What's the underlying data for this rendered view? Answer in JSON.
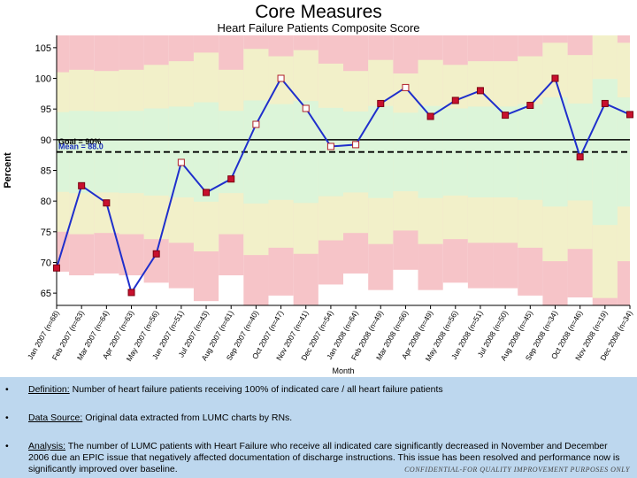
{
  "slide": {
    "title": "Core Measures"
  },
  "chart_data": {
    "type": "line",
    "title": "Heart Failure Patients Composite Score",
    "xlabel": "Month",
    "ylabel": "Percent",
    "ylim": [
      63,
      107
    ],
    "yticks": [
      65,
      70,
      75,
      80,
      85,
      90,
      95,
      100,
      105
    ],
    "categories": [
      "Jan 2007 (n=68)",
      "Feb 2007 (n=63)",
      "Mar 2007 (n=64)",
      "Apr 2007 (n=63)",
      "May 2007 (n=56)",
      "Jun 2007 (n=51)",
      "Jul 2007 (n=43)",
      "Aug 2007 (n=61)",
      "Sep 2007 (n=40)",
      "Oct 2007 (n=47)",
      "Nov 2007 (n=41)",
      "Dec 2007 (n=54)",
      "Jan 2008 (n=64)",
      "Feb 2008 (n=49)",
      "Mar 2008 (n=66)",
      "Apr 2008 (n=49)",
      "May 2008 (n=56)",
      "Jun 2008 (n=51)",
      "Jul 2008 (n=50)",
      "Aug 2008 (n=45)",
      "Sep 2008 (n=34)",
      "Oct 2008 (n=46)",
      "Nov 2008 (n=19)",
      "Dec 2008 (n=34)"
    ],
    "series": [
      {
        "values": [
          69.1,
          82.5,
          79.7,
          65.1,
          71.4,
          86.3,
          81.4,
          83.6,
          92.5,
          100.0,
          95.1,
          88.9,
          89.2,
          95.9,
          98.5,
          93.8,
          96.4,
          98.0,
          94.0,
          95.6,
          100.0,
          87.2,
          95.9,
          94.1
        ]
      }
    ],
    "goal": {
      "label": "Goal = 90%",
      "value": 90
    },
    "mean": {
      "label": "Mean = 88.0",
      "value": 88.0
    },
    "control_bands": {
      "center": 88.0,
      "sigma_by_month": [
        6.5,
        6.7,
        6.6,
        6.7,
        7.1,
        7.4,
        8.1,
        6.7,
        8.4,
        7.8,
        8.3,
        7.2,
        6.6,
        7.5,
        6.4,
        7.5,
        7.1,
        7.4,
        7.4,
        7.8,
        8.9,
        7.9,
        11.9,
        8.9
      ]
    },
    "band_colors": {
      "inner": "#dcf5d9",
      "middle": "#f2f0c9",
      "outer": "#f6c4c8"
    }
  },
  "footer": {
    "bullets": [
      {
        "dot": "•",
        "label": "Definition:",
        "text": " Number of heart failure patients receiving 100% of indicated care / all heart failure patients"
      },
      {
        "dot": "•",
        "label": "Data Source:",
        "text": "  Original data extracted from LUMC charts by RNs."
      },
      {
        "dot": "•",
        "label": "Analysis:",
        "text": " The number of LUMC patients with Heart Failure who receive all indicated care significantly decreased in November and December 2006 due an EPIC issue that negatively affected documentation of discharge instructions. This issue has been resolved and performance now is significantly improved over baseline."
      }
    ],
    "confidential": "CONFIDENTIAL-FOR QUALITY IMPROVEMENT PURPOSES ONLY"
  }
}
